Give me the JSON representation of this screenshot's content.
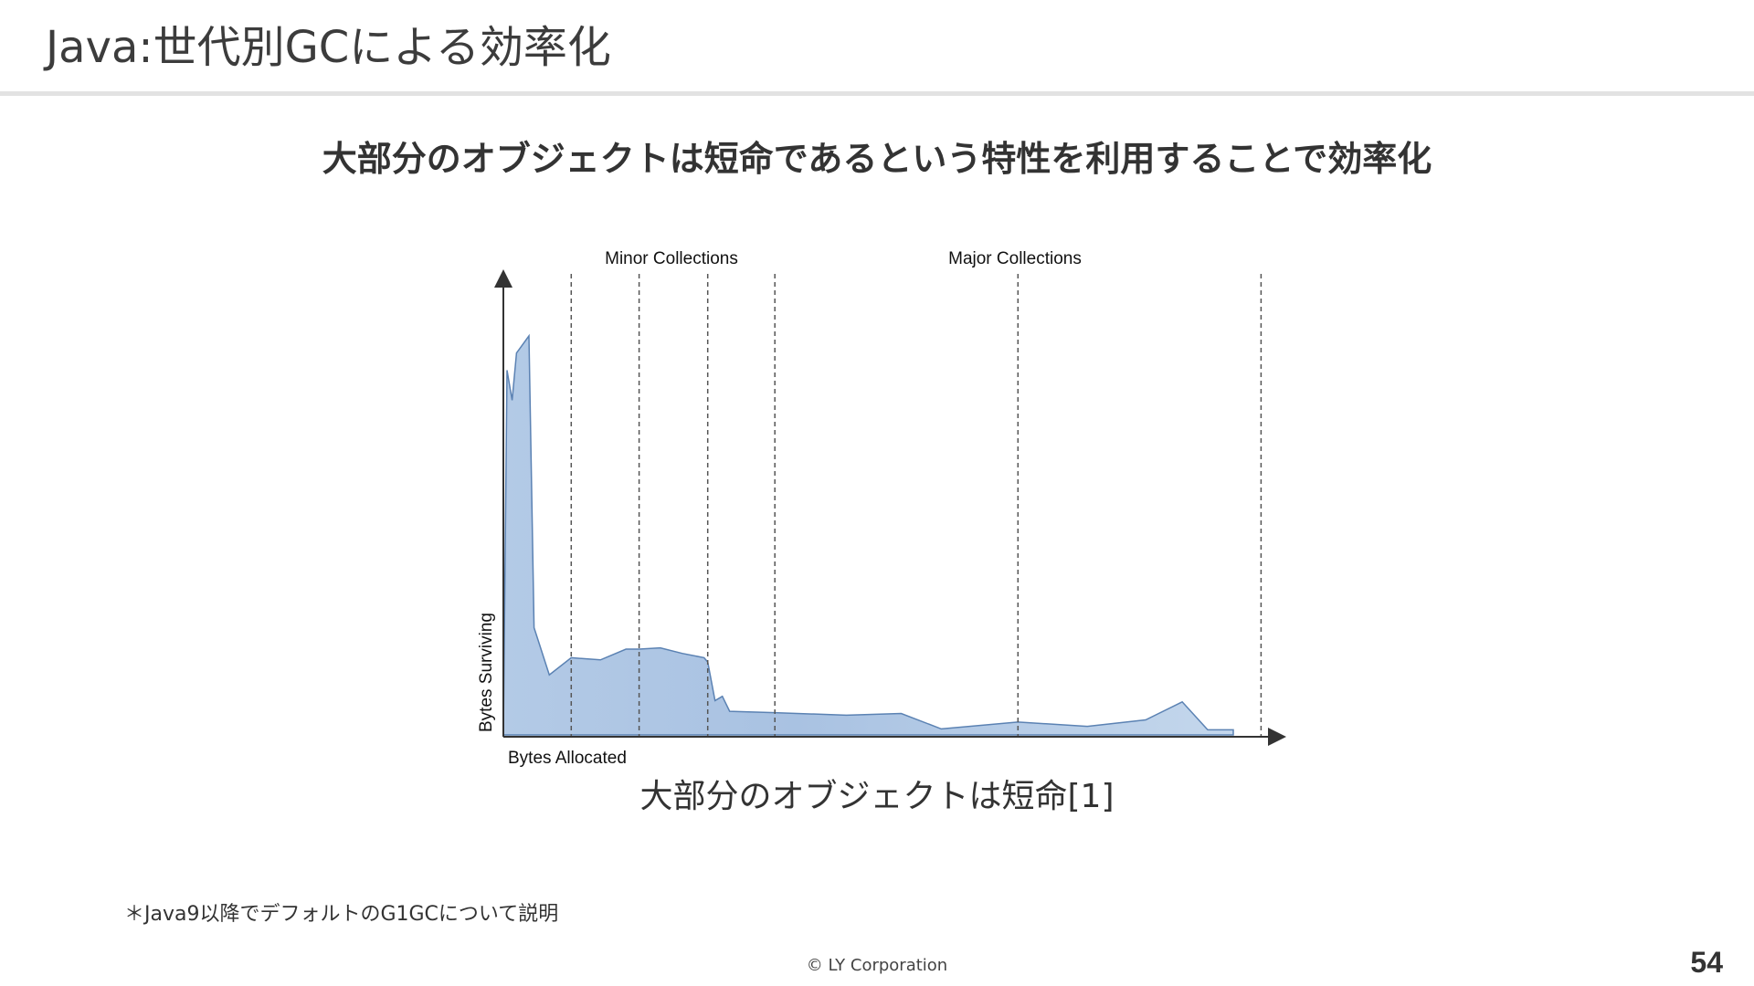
{
  "slide": {
    "title": "Java:世代別GCによる効率化",
    "headline": "大部分のオブジェクトは短命であるという特性を利用することで効率化",
    "caption": "大部分のオブジェクトは短命[1]",
    "footnote": "＊Java9以降でデフォルトのG1GCについて説明",
    "copyright": "© LY Corporation",
    "page_number": "54"
  },
  "chart_data": {
    "type": "area",
    "xlabel": "Bytes Allocated",
    "ylabel": "Bytes Surviving",
    "annotations": [
      "Minor Collections",
      "Major Collections"
    ],
    "fill_color": "#b7cde6",
    "line_color": "#5b82b3",
    "grid": false,
    "xlim": [
      0,
      100
    ],
    "ylim": [
      0,
      100
    ],
    "collection_boundaries": [
      9.3,
      18.6,
      28,
      37.2,
      70.5,
      103.8
    ],
    "x": [
      0,
      0.5,
      1.2,
      1.8,
      3.5,
      4.2,
      6.3,
      9.3,
      13.3,
      16.8,
      18.6,
      21.5,
      24.5,
      27.5,
      28,
      29,
      30,
      31,
      37.2,
      47,
      54.5,
      60,
      70.5,
      80,
      88,
      93,
      96.5,
      100
    ],
    "y": [
      0,
      85,
      78,
      89,
      93,
      25,
      14,
      18,
      17.5,
      20,
      20,
      20.3,
      19,
      18,
      17,
      8,
      9,
      5.5,
      5.2,
      4.6,
      5,
      1.4,
      3,
      2,
      3.5,
      7.7,
      1.2,
      1.2
    ]
  }
}
